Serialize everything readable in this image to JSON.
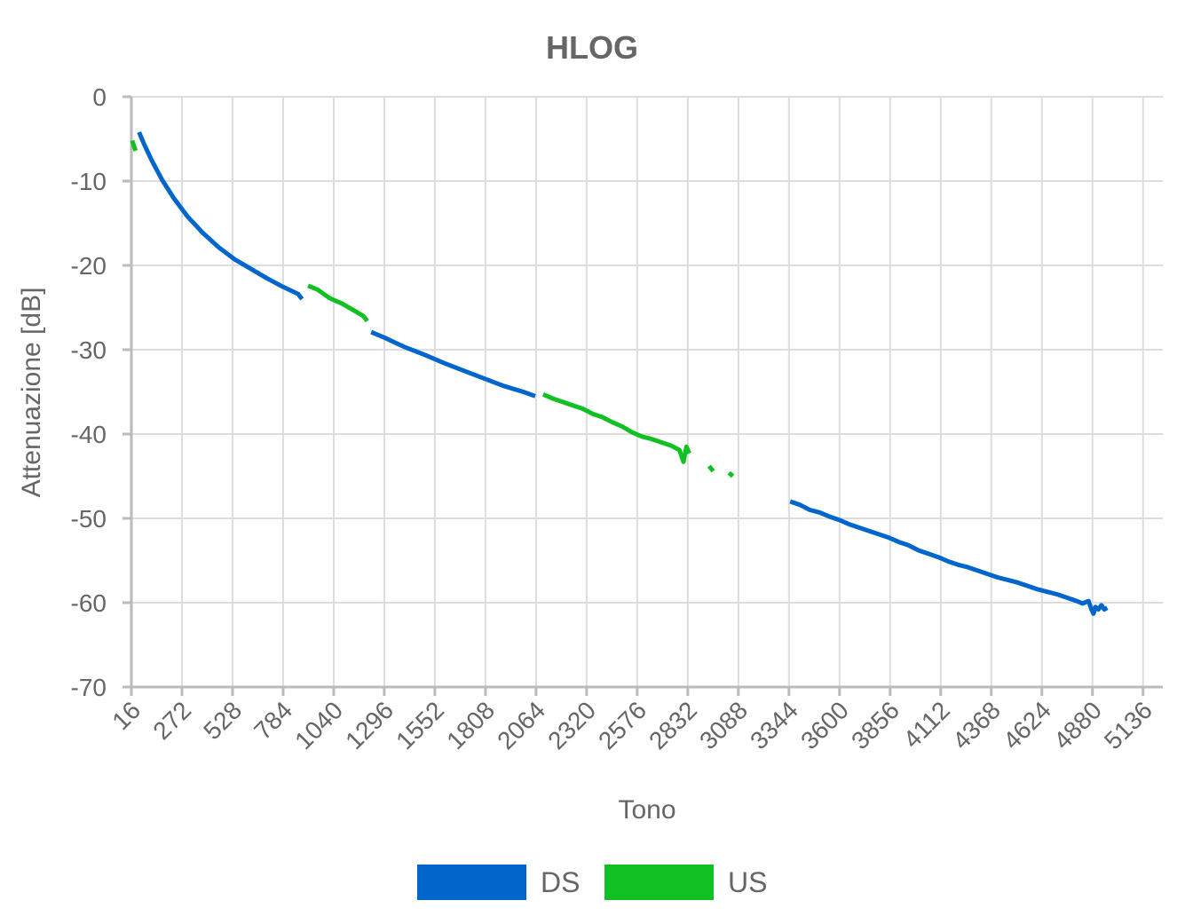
{
  "chart_data": {
    "type": "line",
    "title": "HLOG",
    "xlabel": "Tono",
    "ylabel": "Attenuazione [dB]",
    "xlim": [
      16,
      5236
    ],
    "ylim": [
      -70,
      0
    ],
    "x_ticks": [
      16,
      272,
      528,
      784,
      1040,
      1296,
      1552,
      1808,
      2064,
      2320,
      2576,
      2832,
      3088,
      3344,
      3600,
      3856,
      4112,
      4368,
      4624,
      4880,
      5136
    ],
    "y_ticks": [
      0,
      -10,
      -20,
      -30,
      -40,
      -50,
      -60,
      -70
    ],
    "grid": true,
    "legend_position": "bottom",
    "series": [
      {
        "name": "DS",
        "color": "#0066cc",
        "segments": [
          [
            [
              55,
              -4.2
            ],
            [
              80,
              -5.6
            ],
            [
              120,
              -7.6
            ],
            [
              170,
              -9.8
            ],
            [
              230,
              -12.0
            ],
            [
              300,
              -14.2
            ],
            [
              380,
              -16.2
            ],
            [
              460,
              -17.9
            ],
            [
              540,
              -19.3
            ],
            [
              620,
              -20.4
            ],
            [
              700,
              -21.5
            ],
            [
              780,
              -22.5
            ],
            [
              860,
              -23.4
            ],
            [
              880,
              -24.0
            ]
          ],
          [
            [
              1230,
              -27.9
            ],
            [
              1300,
              -28.6
            ],
            [
              1400,
              -29.7
            ],
            [
              1500,
              -30.6
            ],
            [
              1600,
              -31.6
            ],
            [
              1700,
              -32.5
            ],
            [
              1800,
              -33.4
            ],
            [
              1900,
              -34.3
            ],
            [
              2000,
              -35.0
            ],
            [
              2060,
              -35.5
            ]
          ],
          [
            [
              3350,
              -48.0
            ],
            [
              3400,
              -48.4
            ],
            [
              3450,
              -49.0
            ],
            [
              3500,
              -49.3
            ],
            [
              3550,
              -49.8
            ],
            [
              3600,
              -50.2
            ],
            [
              3650,
              -50.7
            ],
            [
              3700,
              -51.1
            ],
            [
              3750,
              -51.5
            ],
            [
              3800,
              -51.9
            ],
            [
              3850,
              -52.3
            ],
            [
              3900,
              -52.8
            ],
            [
              3950,
              -53.2
            ],
            [
              4000,
              -53.8
            ],
            [
              4050,
              -54.2
            ],
            [
              4100,
              -54.6
            ],
            [
              4150,
              -55.1
            ],
            [
              4200,
              -55.5
            ],
            [
              4250,
              -55.8
            ],
            [
              4300,
              -56.2
            ],
            [
              4350,
              -56.6
            ],
            [
              4400,
              -57.0
            ],
            [
              4450,
              -57.3
            ],
            [
              4500,
              -57.6
            ],
            [
              4550,
              -58.0
            ],
            [
              4600,
              -58.4
            ],
            [
              4650,
              -58.7
            ],
            [
              4700,
              -59.0
            ],
            [
              4750,
              -59.4
            ],
            [
              4800,
              -59.8
            ],
            [
              4830,
              -60.1
            ],
            [
              4860,
              -59.8
            ],
            [
              4875,
              -60.8
            ],
            [
              4885,
              -61.3
            ],
            [
              4895,
              -60.5
            ],
            [
              4910,
              -60.8
            ],
            [
              4925,
              -60.3
            ],
            [
              4940,
              -60.8
            ],
            [
              4955,
              -60.6
            ]
          ]
        ]
      },
      {
        "name": "US",
        "color": "#11c022",
        "segments": [
          [
            [
              20,
              -5.2
            ],
            [
              28,
              -5.8
            ],
            [
              38,
              -6.4
            ]
          ],
          [
            [
              910,
              -22.4
            ],
            [
              960,
              -22.9
            ],
            [
              1020,
              -23.9
            ],
            [
              1080,
              -24.5
            ],
            [
              1140,
              -25.3
            ],
            [
              1190,
              -26.0
            ],
            [
              1210,
              -26.6
            ]
          ],
          [
            [
              2100,
              -35.3
            ],
            [
              2150,
              -35.8
            ],
            [
              2200,
              -36.2
            ],
            [
              2250,
              -36.6
            ],
            [
              2300,
              -37.0
            ],
            [
              2350,
              -37.6
            ],
            [
              2400,
              -38.0
            ],
            [
              2450,
              -38.6
            ],
            [
              2500,
              -39.1
            ],
            [
              2550,
              -39.8
            ],
            [
              2600,
              -40.3
            ],
            [
              2650,
              -40.6
            ],
            [
              2700,
              -41.0
            ],
            [
              2750,
              -41.4
            ],
            [
              2790,
              -41.9
            ],
            [
              2810,
              -43.3
            ],
            [
              2825,
              -41.5
            ],
            [
              2840,
              -42.3
            ]
          ],
          [
            [
              2940,
              -43.8
            ],
            [
              2960,
              -44.4
            ]
          ],
          [
            [
              3040,
              -44.6
            ],
            [
              3060,
              -45.0
            ]
          ]
        ]
      }
    ]
  }
}
